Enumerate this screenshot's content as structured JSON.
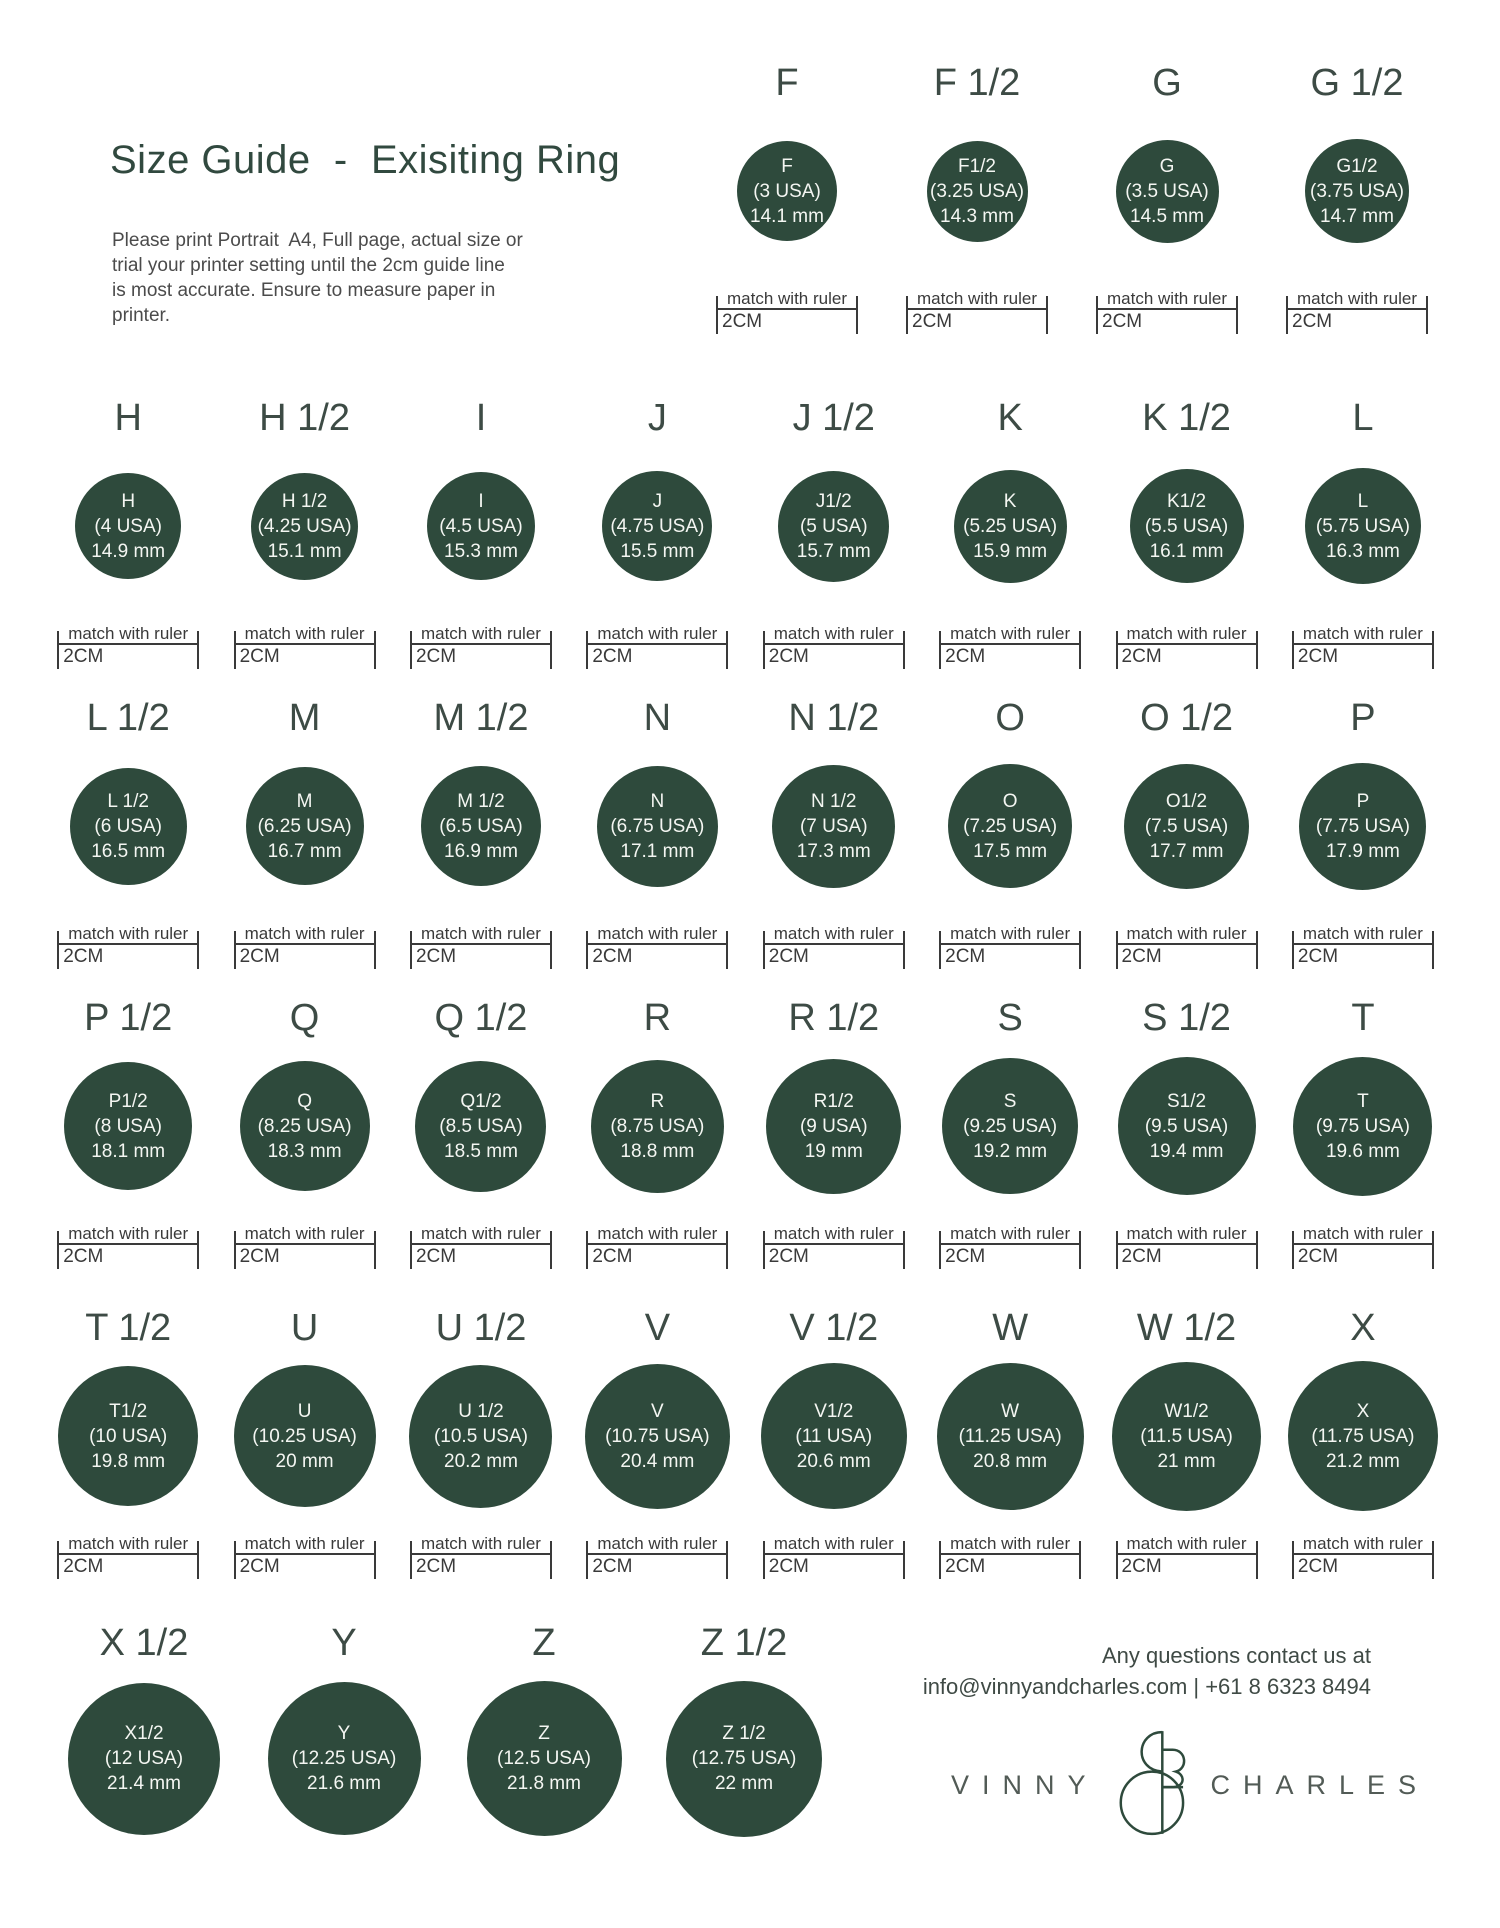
{
  "page": {
    "title": "Size Guide  -  Exisiting Ring",
    "intro_lines": [
      "Please print Portrait  A4, Full page, actual size or",
      "trial your printer setting until the 2cm guide line",
      "is most accurate. Ensure to measure paper in",
      "printer."
    ]
  },
  "ruler": {
    "label": "match with ruler",
    "length_label": "2CM"
  },
  "rows": [
    {
      "has_ruler": true,
      "sizes": [
        {
          "header": "F",
          "label": "F",
          "usa": "(3 USA)",
          "mm_text": "14.1 mm",
          "mm": 14.1
        },
        {
          "header": "F 1/2",
          "label": "F1/2",
          "usa": "(3.25 USA)",
          "mm_text": "14.3 mm",
          "mm": 14.3
        },
        {
          "header": "G",
          "label": "G",
          "usa": "(3.5 USA)",
          "mm_text": "14.5 mm",
          "mm": 14.5
        },
        {
          "header": "G 1/2",
          "label": "G1/2",
          "usa": "(3.75 USA)",
          "mm_text": "14.7 mm",
          "mm": 14.7
        }
      ]
    },
    {
      "has_ruler": true,
      "sizes": [
        {
          "header": "H",
          "label": "H",
          "usa": "(4 USA)",
          "mm_text": "14.9 mm",
          "mm": 14.9
        },
        {
          "header": "H 1/2",
          "label": "H 1/2",
          "usa": "(4.25 USA)",
          "mm_text": "15.1 mm",
          "mm": 15.1
        },
        {
          "header": "I",
          "label": "I",
          "usa": "(4.5 USA)",
          "mm_text": "15.3 mm",
          "mm": 15.3
        },
        {
          "header": "J",
          "label": "J",
          "usa": "(4.75 USA)",
          "mm_text": "15.5 mm",
          "mm": 15.5
        },
        {
          "header": "J 1/2",
          "label": "J1/2",
          "usa": "(5 USA)",
          "mm_text": "15.7 mm",
          "mm": 15.7
        },
        {
          "header": "K",
          "label": "K",
          "usa": "(5.25 USA)",
          "mm_text": "15.9 mm",
          "mm": 15.9
        },
        {
          "header": "K 1/2",
          "label": "K1/2",
          "usa": "(5.5 USA)",
          "mm_text": "16.1 mm",
          "mm": 16.1
        },
        {
          "header": "L",
          "label": "L",
          "usa": "(5.75 USA)",
          "mm_text": "16.3 mm",
          "mm": 16.3
        }
      ]
    },
    {
      "has_ruler": true,
      "sizes": [
        {
          "header": "L 1/2",
          "label": "L 1/2",
          "usa": "(6 USA)",
          "mm_text": "16.5 mm",
          "mm": 16.5
        },
        {
          "header": "M",
          "label": "M",
          "usa": "(6.25 USA)",
          "mm_text": "16.7 mm",
          "mm": 16.7
        },
        {
          "header": "M 1/2",
          "label": "M 1/2",
          "usa": "(6.5 USA)",
          "mm_text": "16.9 mm",
          "mm": 16.9
        },
        {
          "header": "N",
          "label": "N",
          "usa": "(6.75 USA)",
          "mm_text": "17.1 mm",
          "mm": 17.1
        },
        {
          "header": "N 1/2",
          "label": "N 1/2",
          "usa": "(7 USA)",
          "mm_text": "17.3 mm",
          "mm": 17.3
        },
        {
          "header": "O",
          "label": "O",
          "usa": "(7.25 USA)",
          "mm_text": "17.5 mm",
          "mm": 17.5
        },
        {
          "header": "O 1/2",
          "label": "O1/2",
          "usa": "(7.5 USA)",
          "mm_text": "17.7 mm",
          "mm": 17.7
        },
        {
          "header": "P",
          "label": "P",
          "usa": "(7.75 USA)",
          "mm_text": "17.9 mm",
          "mm": 17.9
        }
      ]
    },
    {
      "has_ruler": true,
      "sizes": [
        {
          "header": "P 1/2",
          "label": "P1/2",
          "usa": "(8 USA)",
          "mm_text": "18.1 mm",
          "mm": 18.1
        },
        {
          "header": "Q",
          "label": "Q",
          "usa": "(8.25 USA)",
          "mm_text": "18.3 mm",
          "mm": 18.3
        },
        {
          "header": "Q 1/2",
          "label": "Q1/2",
          "usa": "(8.5 USA)",
          "mm_text": "18.5 mm",
          "mm": 18.5
        },
        {
          "header": "R",
          "label": "R",
          "usa": "(8.75 USA)",
          "mm_text": "18.8 mm",
          "mm": 18.8
        },
        {
          "header": "R 1/2",
          "label": "R1/2",
          "usa": "(9 USA)",
          "mm_text": "19 mm",
          "mm": 19
        },
        {
          "header": "S",
          "label": "S",
          "usa": "(9.25 USA)",
          "mm_text": "19.2 mm",
          "mm": 19.2
        },
        {
          "header": "S 1/2",
          "label": "S1/2",
          "usa": "(9.5 USA)",
          "mm_text": "19.4 mm",
          "mm": 19.4
        },
        {
          "header": "T",
          "label": "T",
          "usa": "(9.75 USA)",
          "mm_text": "19.6 mm",
          "mm": 19.6
        }
      ]
    },
    {
      "has_ruler": true,
      "sizes": [
        {
          "header": "T 1/2",
          "label": "T1/2",
          "usa": "(10 USA)",
          "mm_text": "19.8 mm",
          "mm": 19.8
        },
        {
          "header": "U",
          "label": "U",
          "usa": "(10.25 USA)",
          "mm_text": "20 mm",
          "mm": 20
        },
        {
          "header": "U 1/2",
          "label": "U 1/2",
          "usa": "(10.5 USA)",
          "mm_text": "20.2 mm",
          "mm": 20.2
        },
        {
          "header": "V",
          "label": "V",
          "usa": "(10.75 USA)",
          "mm_text": "20.4 mm",
          "mm": 20.4
        },
        {
          "header": "V 1/2",
          "label": "V1/2",
          "usa": "(11 USA)",
          "mm_text": "20.6 mm",
          "mm": 20.6
        },
        {
          "header": "W",
          "label": "W",
          "usa": "(11.25 USA)",
          "mm_text": "20.8 mm",
          "mm": 20.8
        },
        {
          "header": "W 1/2",
          "label": "W1/2",
          "usa": "(11.5 USA)",
          "mm_text": "21 mm",
          "mm": 21
        },
        {
          "header": "X",
          "label": "X",
          "usa": "(11.75 USA)",
          "mm_text": "21.2 mm",
          "mm": 21.2
        }
      ]
    },
    {
      "has_ruler": false,
      "sizes": [
        {
          "header": "X 1/2",
          "label": "X1/2",
          "usa": "(12 USA)",
          "mm_text": "21.4 mm",
          "mm": 21.4
        },
        {
          "header": "Y",
          "label": "Y",
          "usa": "(12.25 USA)",
          "mm_text": "21.6 mm",
          "mm": 21.6
        },
        {
          "header": "Z",
          "label": "Z",
          "usa": "(12.5 USA)",
          "mm_text": "21.8 mm",
          "mm": 21.8
        },
        {
          "header": "Z 1/2",
          "label": "Z 1/2",
          "usa": "(12.75 USA)",
          "mm_text": "22 mm",
          "mm": 22
        }
      ]
    }
  ],
  "footer": {
    "contact_line1": "Any questions contact us at",
    "contact_line2": "info@vinnyandcharles.com  |  +61 8 6323 8494",
    "brand_left": "VINNY",
    "brand_right": "CHARLES",
    "brand_symbol": "ampersand-monogram"
  },
  "colors": {
    "circle_fill": "#2E4A3C",
    "circle_text": "#F4F6F2",
    "title_text": "#31493F",
    "header_text": "#3D4B45",
    "body_text": "#4B4B4B",
    "ruler_color": "#3A3A3A",
    "logo_text": "#525B56"
  }
}
